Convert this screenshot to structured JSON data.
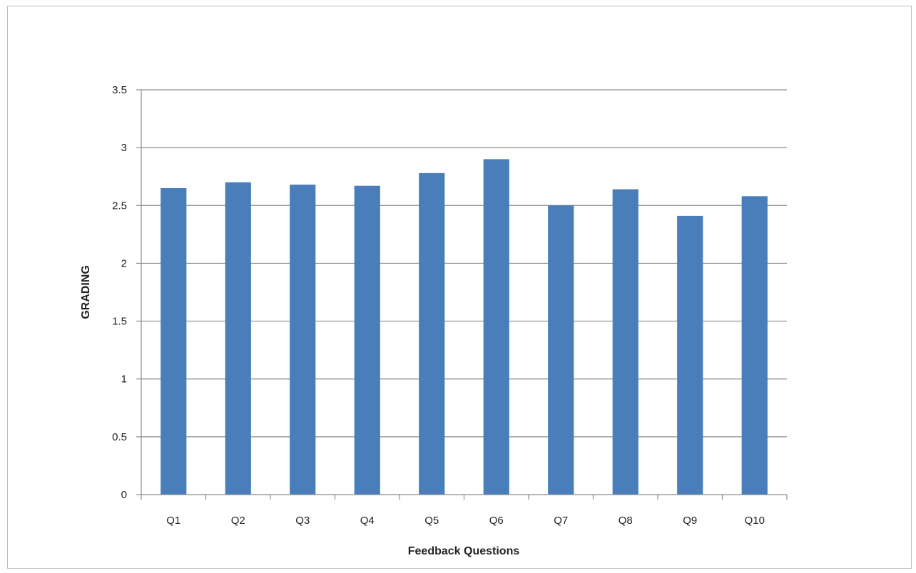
{
  "chart_data": {
    "type": "bar",
    "title": "",
    "xlabel": "Feedback Questions",
    "ylabel": "GRADING",
    "categories": [
      "Q1",
      "Q2",
      "Q3",
      "Q4",
      "Q5",
      "Q6",
      "Q7",
      "Q8",
      "Q9",
      "Q10"
    ],
    "values": [
      2.65,
      2.7,
      2.68,
      2.67,
      2.78,
      2.9,
      2.5,
      2.64,
      2.41,
      2.58
    ],
    "ylim": [
      0,
      3.5
    ],
    "yticks": [
      "0",
      "0.5",
      "1",
      "1.5",
      "2",
      "2.5",
      "3",
      "3.5"
    ],
    "grid": true,
    "legend": "none",
    "colors": {
      "bar": "#4a7ebb",
      "grid": "#8c8c8c",
      "axis": "#8c8c8c"
    }
  }
}
